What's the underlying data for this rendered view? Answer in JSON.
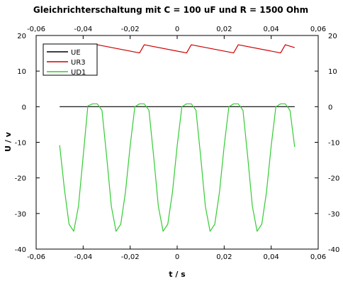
{
  "chart_data": {
    "type": "line",
    "title": "Gleichrichterschaltung mit C = 100 uF und R = 1500 Ohm",
    "xlabel": "t / s",
    "ylabel": "U / v",
    "xlim": [
      -0.06,
      0.06
    ],
    "ylim": [
      -40,
      20
    ],
    "x_ticks": [
      "-0,06",
      "-0,04",
      "-0,02",
      "0",
      "0,02",
      "0,04",
      "0,06"
    ],
    "y_ticks": [
      "-40",
      "-30",
      "-20",
      "-10",
      "0",
      "10",
      "20"
    ],
    "x_tick_values": [
      -0.06,
      -0.04,
      -0.02,
      0,
      0.02,
      0.04,
      0.06
    ],
    "y_tick_values": [
      -40,
      -30,
      -20,
      -10,
      0,
      10,
      20
    ],
    "grid": false,
    "legend_position": "top-left",
    "series": [
      {
        "name": "UE",
        "color": "#000000",
        "x": [
          -0.05,
          0.05
        ],
        "y": [
          0,
          0
        ]
      },
      {
        "name": "UR3",
        "color": "#cc0000",
        "x": [
          -0.05,
          -0.036,
          -0.034,
          -0.016,
          -0.014,
          0.004,
          0.006,
          0.024,
          0.026,
          0.044,
          0.046,
          0.05
        ],
        "y": [
          17.4,
          15.1,
          17.4,
          15.1,
          17.4,
          15.1,
          17.4,
          15.1,
          17.4,
          15.1,
          17.4,
          16.6
        ]
      },
      {
        "name": "UD1",
        "color": "#33cc33",
        "x": [
          -0.05,
          -0.048,
          -0.046,
          -0.044,
          -0.042,
          -0.04,
          -0.038,
          -0.036,
          -0.034,
          -0.032,
          -0.03,
          -0.028,
          -0.026,
          -0.024,
          -0.022,
          -0.02,
          -0.018,
          -0.016,
          -0.014,
          -0.012,
          -0.01,
          -0.008,
          -0.006,
          -0.004,
          -0.002,
          0,
          0.002,
          0.004,
          0.006,
          0.008,
          0.01,
          0.012,
          0.014,
          0.016,
          0.018,
          0.02,
          0.022,
          0.024,
          0.026,
          0.028,
          0.03,
          0.032,
          0.034,
          0.036,
          0.038,
          0.04,
          0.042,
          0.044,
          0.046,
          0.048,
          0.05
        ],
        "y": [
          -10.8,
          -23,
          -33,
          -35,
          -28,
          -14,
          0.2,
          0.8,
          0.8,
          -1,
          -14,
          -28,
          -35,
          -33,
          -24,
          -11,
          0,
          0.8,
          0.8,
          -1,
          -14,
          -28,
          -35,
          -33,
          -24,
          -11,
          0,
          0.8,
          0.8,
          -1,
          -14,
          -28,
          -35,
          -33,
          -24,
          -11,
          0,
          0.8,
          0.8,
          -1,
          -14,
          -28,
          -35,
          -33,
          -24,
          -11,
          0,
          0.8,
          0.8,
          -1,
          -11.3
        ]
      }
    ]
  }
}
